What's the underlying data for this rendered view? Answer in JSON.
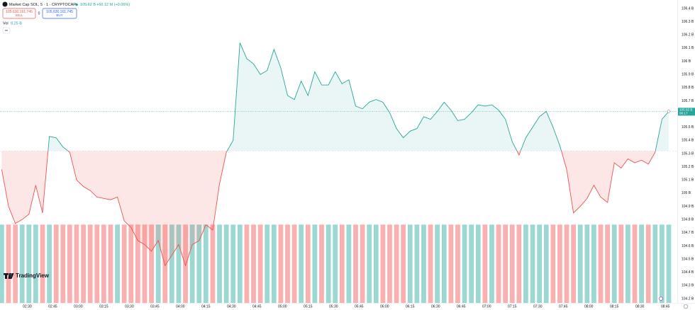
{
  "header": {
    "title": "Market Cap SOL, 5 · 1 · CRYPTOCAP",
    "price": "105.62 B",
    "change": "+60.12 M (+0.06%)",
    "sell_price": "105,630,161,745",
    "sell": "SELL",
    "spread": "0",
    "buy_price": "105,630,161,745",
    "buy": "BUY",
    "vol_label": "Vol",
    "vol_value": "8.25 B",
    "logo": "TradingView"
  },
  "chart_data": {
    "type": "baseline",
    "x": [
      "02:15",
      "02:19",
      "02:23",
      "02:27",
      "02:31",
      "02:35",
      "02:39",
      "02:43",
      "02:47",
      "02:51",
      "02:55",
      "02:59",
      "03:03",
      "03:07",
      "03:11",
      "03:15",
      "03:19",
      "03:23",
      "03:27",
      "03:31",
      "03:35",
      "03:39",
      "03:43",
      "03:47",
      "03:51",
      "03:55",
      "03:59",
      "04:03",
      "04:07",
      "04:11",
      "04:15",
      "04:19",
      "04:23",
      "04:27",
      "04:31",
      "04:35",
      "04:39",
      "04:43",
      "04:47",
      "04:51",
      "04:55",
      "04:59",
      "05:03",
      "05:07",
      "05:11",
      "05:15",
      "05:19",
      "05:23",
      "05:27",
      "05:31",
      "05:35",
      "05:39",
      "05:43",
      "05:47",
      "05:51",
      "05:55",
      "05:59",
      "06:03",
      "06:07",
      "06:11",
      "06:15",
      "06:19",
      "06:23",
      "06:27",
      "06:31",
      "06:35",
      "06:39",
      "06:43",
      "06:47",
      "06:51",
      "06:55",
      "06:59",
      "07:03",
      "07:07",
      "07:11",
      "07:15",
      "07:19",
      "07:23",
      "07:27",
      "07:31",
      "07:35",
      "07:39",
      "07:43",
      "07:47",
      "07:51",
      "07:55",
      "07:59",
      "08:03",
      "08:07",
      "08:11",
      "08:15",
      "08:19",
      "08:23",
      "08:27",
      "08:31",
      "08:35",
      "08:39",
      "08:43",
      "08:47"
    ],
    "values": [
      105.18,
      104.9,
      104.77,
      104.8,
      104.84,
      105.06,
      104.85,
      105.43,
      105.42,
      105.35,
      105.31,
      105.1,
      105.05,
      105.02,
      104.97,
      104.96,
      104.95,
      104.97,
      104.79,
      104.74,
      104.64,
      104.61,
      104.56,
      104.64,
      104.45,
      104.53,
      104.61,
      104.45,
      104.61,
      104.64,
      104.76,
      104.72,
      105.07,
      105.31,
      105.4,
      106.14,
      106.02,
      105.98,
      105.9,
      105.93,
      106.09,
      105.95,
      105.74,
      105.71,
      105.85,
      105.74,
      105.92,
      105.82,
      105.82,
      105.92,
      105.83,
      105.86,
      105.66,
      105.64,
      105.69,
      105.71,
      105.69,
      105.61,
      105.49,
      105.42,
      105.47,
      105.49,
      105.58,
      105.56,
      105.62,
      105.69,
      105.63,
      105.55,
      105.56,
      105.61,
      105.67,
      105.66,
      105.67,
      105.63,
      105.56,
      105.39,
      105.29,
      105.42,
      105.5,
      105.58,
      105.62,
      105.5,
      105.36,
      105.18,
      104.85,
      104.9,
      104.96,
      105.06,
      104.97,
      104.93,
      105.23,
      105.19,
      105.26,
      105.23,
      105.25,
      105.22,
      105.31,
      105.56,
      105.62
    ],
    "volume": [
      8.25,
      8.25,
      8.25,
      8.25,
      8.25,
      8.25,
      8.25,
      8.25,
      8.25,
      8.25,
      8.25,
      8.25,
      8.25,
      8.25,
      8.25,
      8.25,
      8.25,
      8.25,
      8.25,
      8.25,
      8.25,
      8.25,
      8.25,
      8.25,
      8.25,
      8.25,
      8.25,
      8.25,
      8.25,
      8.25,
      8.25,
      8.25,
      8.25,
      8.25,
      8.25,
      8.25,
      8.25,
      8.25,
      8.25,
      8.25,
      8.25,
      8.25,
      8.25,
      8.25,
      8.25,
      8.25,
      8.25,
      8.25,
      8.25,
      8.25,
      8.25,
      8.25,
      8.25,
      8.25,
      8.25,
      8.25,
      8.25,
      8.25,
      8.25,
      8.25,
      8.25,
      8.25,
      8.25,
      8.25,
      8.25,
      8.25,
      8.25,
      8.25,
      8.25,
      8.25,
      8.25,
      8.25,
      8.25,
      8.25,
      8.25,
      8.25,
      8.25,
      8.25,
      8.25,
      8.25,
      8.25,
      8.25,
      8.25,
      8.25,
      8.25,
      8.25,
      8.25,
      8.25,
      8.25,
      8.25,
      8.25,
      8.25,
      8.25,
      8.25,
      8.25,
      8.25,
      8.25,
      8.25,
      8.25
    ],
    "vol_lim": [
      0,
      31
    ],
    "baseline": 105.32,
    "up_color": "#26a69a",
    "down_color": "#ef5350",
    "xlim": [
      "02:14",
      "08:52"
    ],
    "xticks": [
      "02:30",
      "02:45",
      "03:00",
      "03:15",
      "03:30",
      "03:45",
      "04:00",
      "04:15",
      "04:30",
      "04:45",
      "05:00",
      "05:15",
      "05:30",
      "05:45",
      "06:00",
      "06:15",
      "06:30",
      "06:45",
      "07:00",
      "07:15",
      "07:30",
      "07:45",
      "08:00",
      "08:15",
      "08:30",
      "08:45"
    ],
    "ylim": [
      104.2,
      106.4
    ],
    "yticks": [
      {
        "value": 104.2,
        "label": "104.2 B"
      },
      {
        "value": 104.3,
        "label": "104.3 B"
      },
      {
        "value": 104.4,
        "label": "104.4 B"
      },
      {
        "value": 104.5,
        "label": "104.5 B"
      },
      {
        "value": 104.6,
        "label": "104.6 B"
      },
      {
        "value": 104.7,
        "label": "104.7 B"
      },
      {
        "value": 104.8,
        "label": "104.8 B"
      },
      {
        "value": 104.9,
        "label": "104.9 B"
      },
      {
        "value": 105.0,
        "label": "105 B"
      },
      {
        "value": 105.1,
        "label": "105.1 B"
      },
      {
        "value": 105.2,
        "label": "105.2 B"
      },
      {
        "value": 105.3,
        "label": "105.3 B"
      },
      {
        "value": 105.4,
        "label": "105.4 B"
      },
      {
        "value": 105.5,
        "label": "105.5 B"
      },
      {
        "value": 105.7,
        "label": "105.7 B"
      },
      {
        "value": 105.8,
        "label": "105.8 B"
      },
      {
        "value": 105.9,
        "label": "105.9 B"
      },
      {
        "value": 106.0,
        "label": "106 B"
      },
      {
        "value": 106.1,
        "label": "106.1 B"
      },
      {
        "value": 106.2,
        "label": "106.2 B"
      },
      {
        "value": 106.3,
        "label": "106.3 B"
      },
      {
        "value": 106.4,
        "label": "106.4 B"
      }
    ],
    "grid": false,
    "last_label": {
      "price": "105.62 B",
      "countdown": "00:17"
    }
  }
}
